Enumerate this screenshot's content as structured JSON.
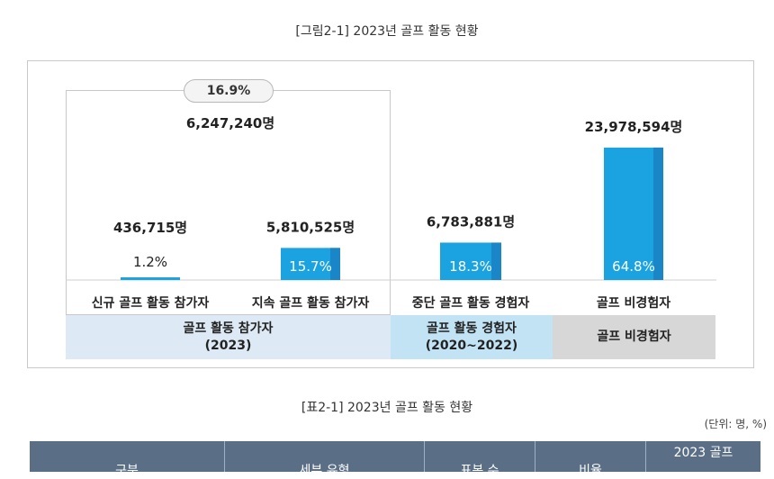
{
  "figure_title": "[그림2-1] 2023년 골프 활동 현황",
  "chart_data": {
    "type": "bar",
    "categories": [
      "신규 골프 활동 참가자",
      "지속 골프 활동 참가자",
      "중단 골프 활동 경험자",
      "골프 비경험자"
    ],
    "counts": [
      436715,
      5810525,
      6783881,
      23978594
    ],
    "values": [
      1.2,
      15.7,
      18.3,
      64.8
    ],
    "count_labels": [
      "436,715명",
      "5,810,525명",
      "6,783,881명",
      "23,978,594명"
    ],
    "percent_labels": [
      "1.2%",
      "15.7%",
      "18.3%",
      "64.8%"
    ],
    "colors": [
      "#1aa3e0",
      "#1aa3e0",
      "#1aa3e0",
      "#1aa3e0"
    ],
    "accent_dark": "#1a86c8",
    "groups": [
      {
        "label_line1": "골프 활동 참가자",
        "label_line2": "(2023)",
        "color": "#dde9f4",
        "subtotal_count": "6,247,240명",
        "subtotal_percent": "16.9%"
      },
      {
        "label_line1": "골프 활동 경험자",
        "label_line2": "(2020~2022)",
        "color": "#c2e3f4"
      },
      {
        "label_line1": "골프 비경험자",
        "label_line2": "",
        "color": "#d7d7d7"
      }
    ]
  },
  "table": {
    "title": "[표2-1] 2023년 골프 활동 현황",
    "unit": "(단위: 명, %)",
    "header_color": "#5a6e86",
    "headers": [
      "구분",
      "세부 유형",
      "표본 수",
      "비율",
      "2023 골프"
    ]
  }
}
